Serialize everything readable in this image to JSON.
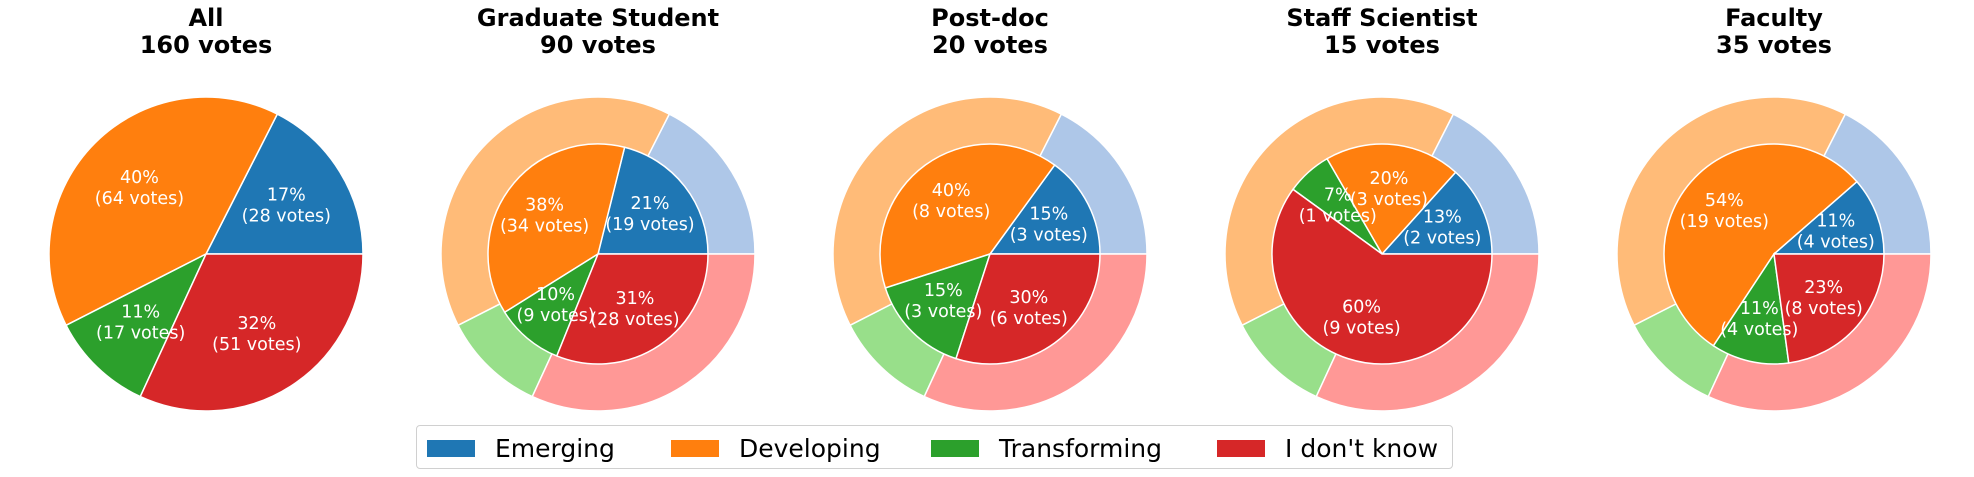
{
  "colors": {
    "Emerging": {
      "dark": "#1f77b4",
      "light": "#aec7e8"
    },
    "Developing": {
      "dark": "#ff7f0e",
      "light": "#ffbb78"
    },
    "Transforming": {
      "dark": "#2ca02c",
      "light": "#98df8a"
    },
    "I don't know": {
      "dark": "#d62728",
      "light": "#ff9896"
    }
  },
  "legend": {
    "items": [
      "Emerging",
      "Developing",
      "Transforming",
      "I don't know"
    ]
  },
  "chart_data": [
    {
      "type": "pie",
      "title": "All\n160 votes",
      "categories": [
        "Emerging",
        "Developing",
        "Transforming",
        "I don't know"
      ],
      "values": [
        28,
        64,
        17,
        51
      ],
      "labels": [
        "17%\n(28 votes)",
        "40%\n(64 votes)",
        "11%\n(17 votes)",
        "32%\n(51 votes)"
      ]
    },
    {
      "type": "pie",
      "title": "Graduate Student\n90 votes",
      "categories": [
        "Emerging",
        "Developing",
        "Transforming",
        "I don't know"
      ],
      "outer_values": [
        28,
        64,
        17,
        51
      ],
      "values": [
        19,
        34,
        9,
        28
      ],
      "labels": [
        "21%\n(19 votes)",
        "38%\n(34 votes)",
        "10%\n(9 votes)",
        "31%\n(28 votes)"
      ]
    },
    {
      "type": "pie",
      "title": "Post-doc\n20 votes",
      "categories": [
        "Emerging",
        "Developing",
        "Transforming",
        "I don't know"
      ],
      "outer_values": [
        28,
        64,
        17,
        51
      ],
      "values": [
        3,
        8,
        3,
        6
      ],
      "labels": [
        "15%\n(3 votes)",
        "40%\n(8 votes)",
        "15%\n(3 votes)",
        "30%\n(6 votes)"
      ]
    },
    {
      "type": "pie",
      "title": "Staff Scientist\n15 votes",
      "categories": [
        "Emerging",
        "Developing",
        "Transforming",
        "I don't know"
      ],
      "outer_values": [
        28,
        64,
        17,
        51
      ],
      "values": [
        2,
        3,
        1,
        9
      ],
      "labels": [
        "13%\n(2 votes)",
        "20%\n(3 votes)",
        "7%\n(1 votes)",
        "60%\n(9 votes)"
      ]
    },
    {
      "type": "pie",
      "title": "Faculty\n35 votes",
      "categories": [
        "Emerging",
        "Developing",
        "Transforming",
        "I don't know"
      ],
      "outer_values": [
        28,
        64,
        17,
        51
      ],
      "values": [
        4,
        19,
        4,
        8
      ],
      "labels": [
        "11%\n(4 votes)",
        "54%\n(19 votes)",
        "11%\n(4 votes)",
        "23%\n(8 votes)"
      ]
    }
  ]
}
